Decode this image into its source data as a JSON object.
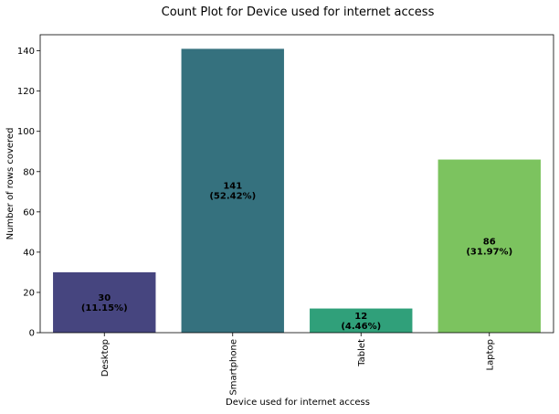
{
  "chart_data": {
    "type": "bar",
    "title": "Count Plot for Device used for internet access",
    "xlabel": "Device used for internet access",
    "ylabel": "Number of rows covered",
    "categories": [
      "Desktop",
      "Smartphone",
      "Tablet",
      "Laptop"
    ],
    "values": [
      30,
      141,
      12,
      86
    ],
    "bar_labels": [
      [
        "30",
        "(11.15%)"
      ],
      [
        "141",
        "(52.42%)"
      ],
      [
        "12",
        "(4.46%)"
      ],
      [
        "86",
        "(31.97%)"
      ]
    ],
    "colors": [
      "#46457f",
      "#35717e",
      "#30a07a",
      "#7cc35f"
    ],
    "ylim": [
      0,
      148
    ],
    "yticks": [
      0,
      20,
      40,
      60,
      80,
      100,
      120,
      140
    ],
    "grid": false,
    "legend": "none"
  }
}
